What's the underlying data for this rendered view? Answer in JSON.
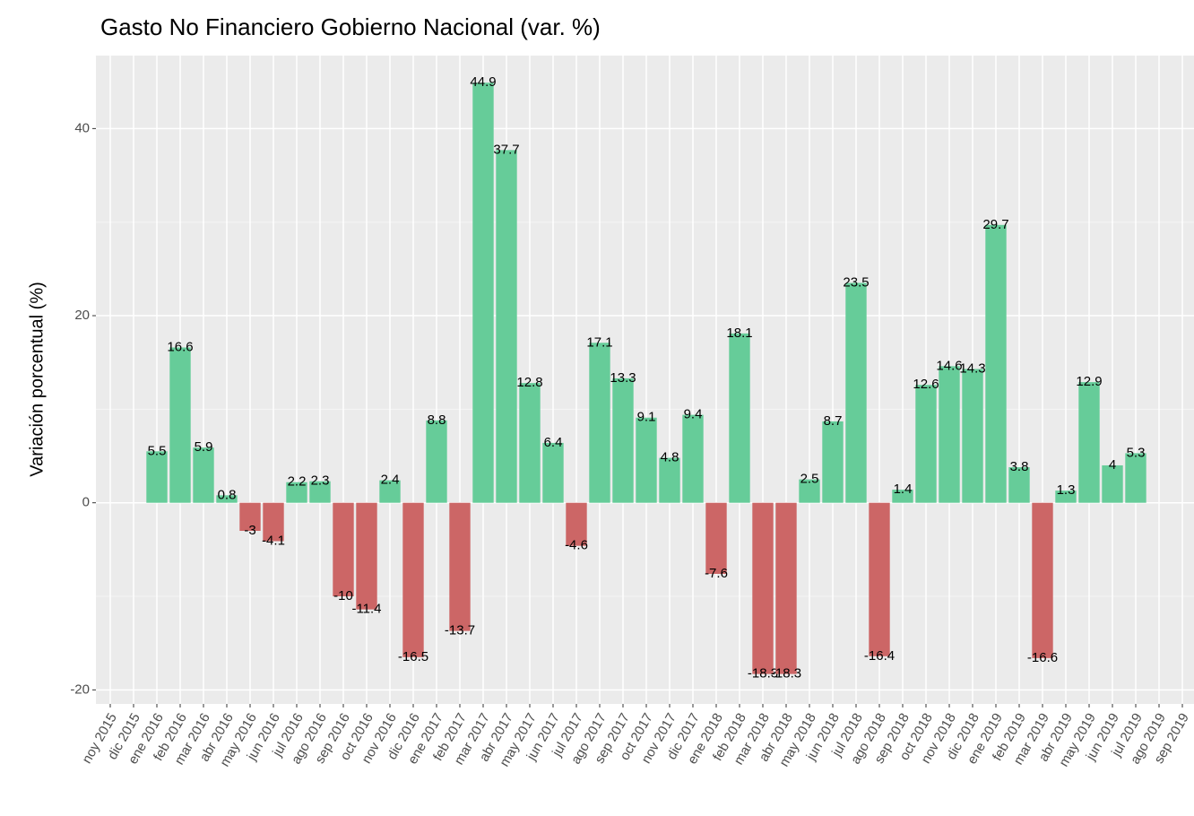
{
  "chart_data": {
    "type": "bar",
    "title": "Gasto No Financiero Gobierno Nacional (var. %)",
    "y_label": "Variación porcentual (%)",
    "categories": [
      "noy 2015",
      "dic 2015",
      "ene 2016",
      "feb 2016",
      "mar 2016",
      "abr 2016",
      "may 2016",
      "jun 2016",
      "jul 2016",
      "ago 2016",
      "sep 2016",
      "oct 2016",
      "nov 2016",
      "dic 2016",
      "ene 2017",
      "feb 2017",
      "mar 2017",
      "abr 2017",
      "may 2017",
      "jun 2017",
      "jul 2017",
      "ago 2017",
      "sep 2017",
      "oct 2017",
      "nov 2017",
      "dic 2017",
      "ene 2018",
      "feb 2018",
      "mar 2018",
      "abr 2018",
      "may 2018",
      "jun 2018",
      "jul 2018",
      "ago 2018",
      "sep 2018",
      "oct 2018",
      "nov 2018",
      "dic 2018",
      "ene 2019",
      "feb 2019",
      "mar 2019",
      "abr 2019",
      "may 2019",
      "jun 2019",
      "jul 2019",
      "ago 2019",
      "sep 2019"
    ],
    "values": [
      null,
      null,
      5.5,
      16.6,
      5.9,
      0.8,
      -3,
      -4.1,
      2.2,
      2.3,
      -10,
      -11.4,
      2.4,
      -16.5,
      8.8,
      -13.7,
      44.9,
      37.7,
      12.8,
      6.4,
      -4.6,
      17.1,
      13.3,
      9.1,
      4.8,
      9.4,
      -7.6,
      18.1,
      -18.3,
      -18.3,
      2.5,
      8.7,
      23.5,
      -16.4,
      1.4,
      12.6,
      14.6,
      14.3,
      29.7,
      3.8,
      -16.6,
      1.3,
      12.9,
      4,
      5.3,
      null,
      null
    ],
    "color_positive": "#66cc99",
    "color_negative": "#cc6666",
    "ylim": [
      -21.5,
      47.8
    ],
    "yticks": [
      -20,
      0,
      20,
      40
    ],
    "grid": true
  }
}
